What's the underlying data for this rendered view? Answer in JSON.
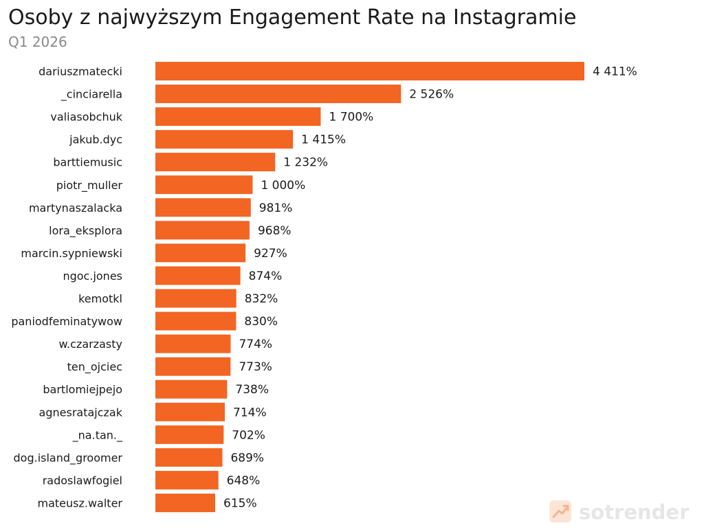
{
  "chart_data": {
    "type": "bar",
    "orientation": "horizontal",
    "title": "Osoby z najwyższym Engagement Rate na Instagramie",
    "subtitle": "Q1 2026",
    "xlabel": "",
    "ylabel": "",
    "grid": false,
    "legend": "none",
    "categories": [
      "dariuszmatecki",
      "_cinciarella",
      "valiasobchuk",
      "jakub.dyc",
      "barttiemusic",
      "piotr_muller",
      "martynaszalacka",
      "lora_eksplora",
      "marcin.sypniewski",
      "ngoc.jones",
      "kemotkl",
      "paniodfeminatywow",
      "w.czarzasty",
      "ten_ojciec",
      "bartlomiejpejo",
      "agnesratajczak",
      "_na.tan._",
      "dog.island_groomer",
      "radoslawfogiel",
      "mateusz.walter"
    ],
    "values": [
      4411,
      2526,
      1700,
      1415,
      1232,
      1000,
      981,
      968,
      927,
      874,
      832,
      830,
      774,
      773,
      738,
      714,
      702,
      689,
      648,
      615
    ],
    "value_labels": [
      "4 411%",
      "2 526%",
      "1 700%",
      "1 415%",
      "1 232%",
      "1 000%",
      "981%",
      "968%",
      "927%",
      "874%",
      "832%",
      "830%",
      "774%",
      "773%",
      "738%",
      "714%",
      "702%",
      "689%",
      "648%",
      "615%"
    ],
    "unit": "%",
    "xlim": [
      0,
      4411
    ],
    "bar_color": "#F26522"
  },
  "watermark": {
    "brand": "sotrender",
    "icon": "trend-chart-icon",
    "icon_bg": "#FCE4D6",
    "icon_fg": "#F5B48E"
  }
}
